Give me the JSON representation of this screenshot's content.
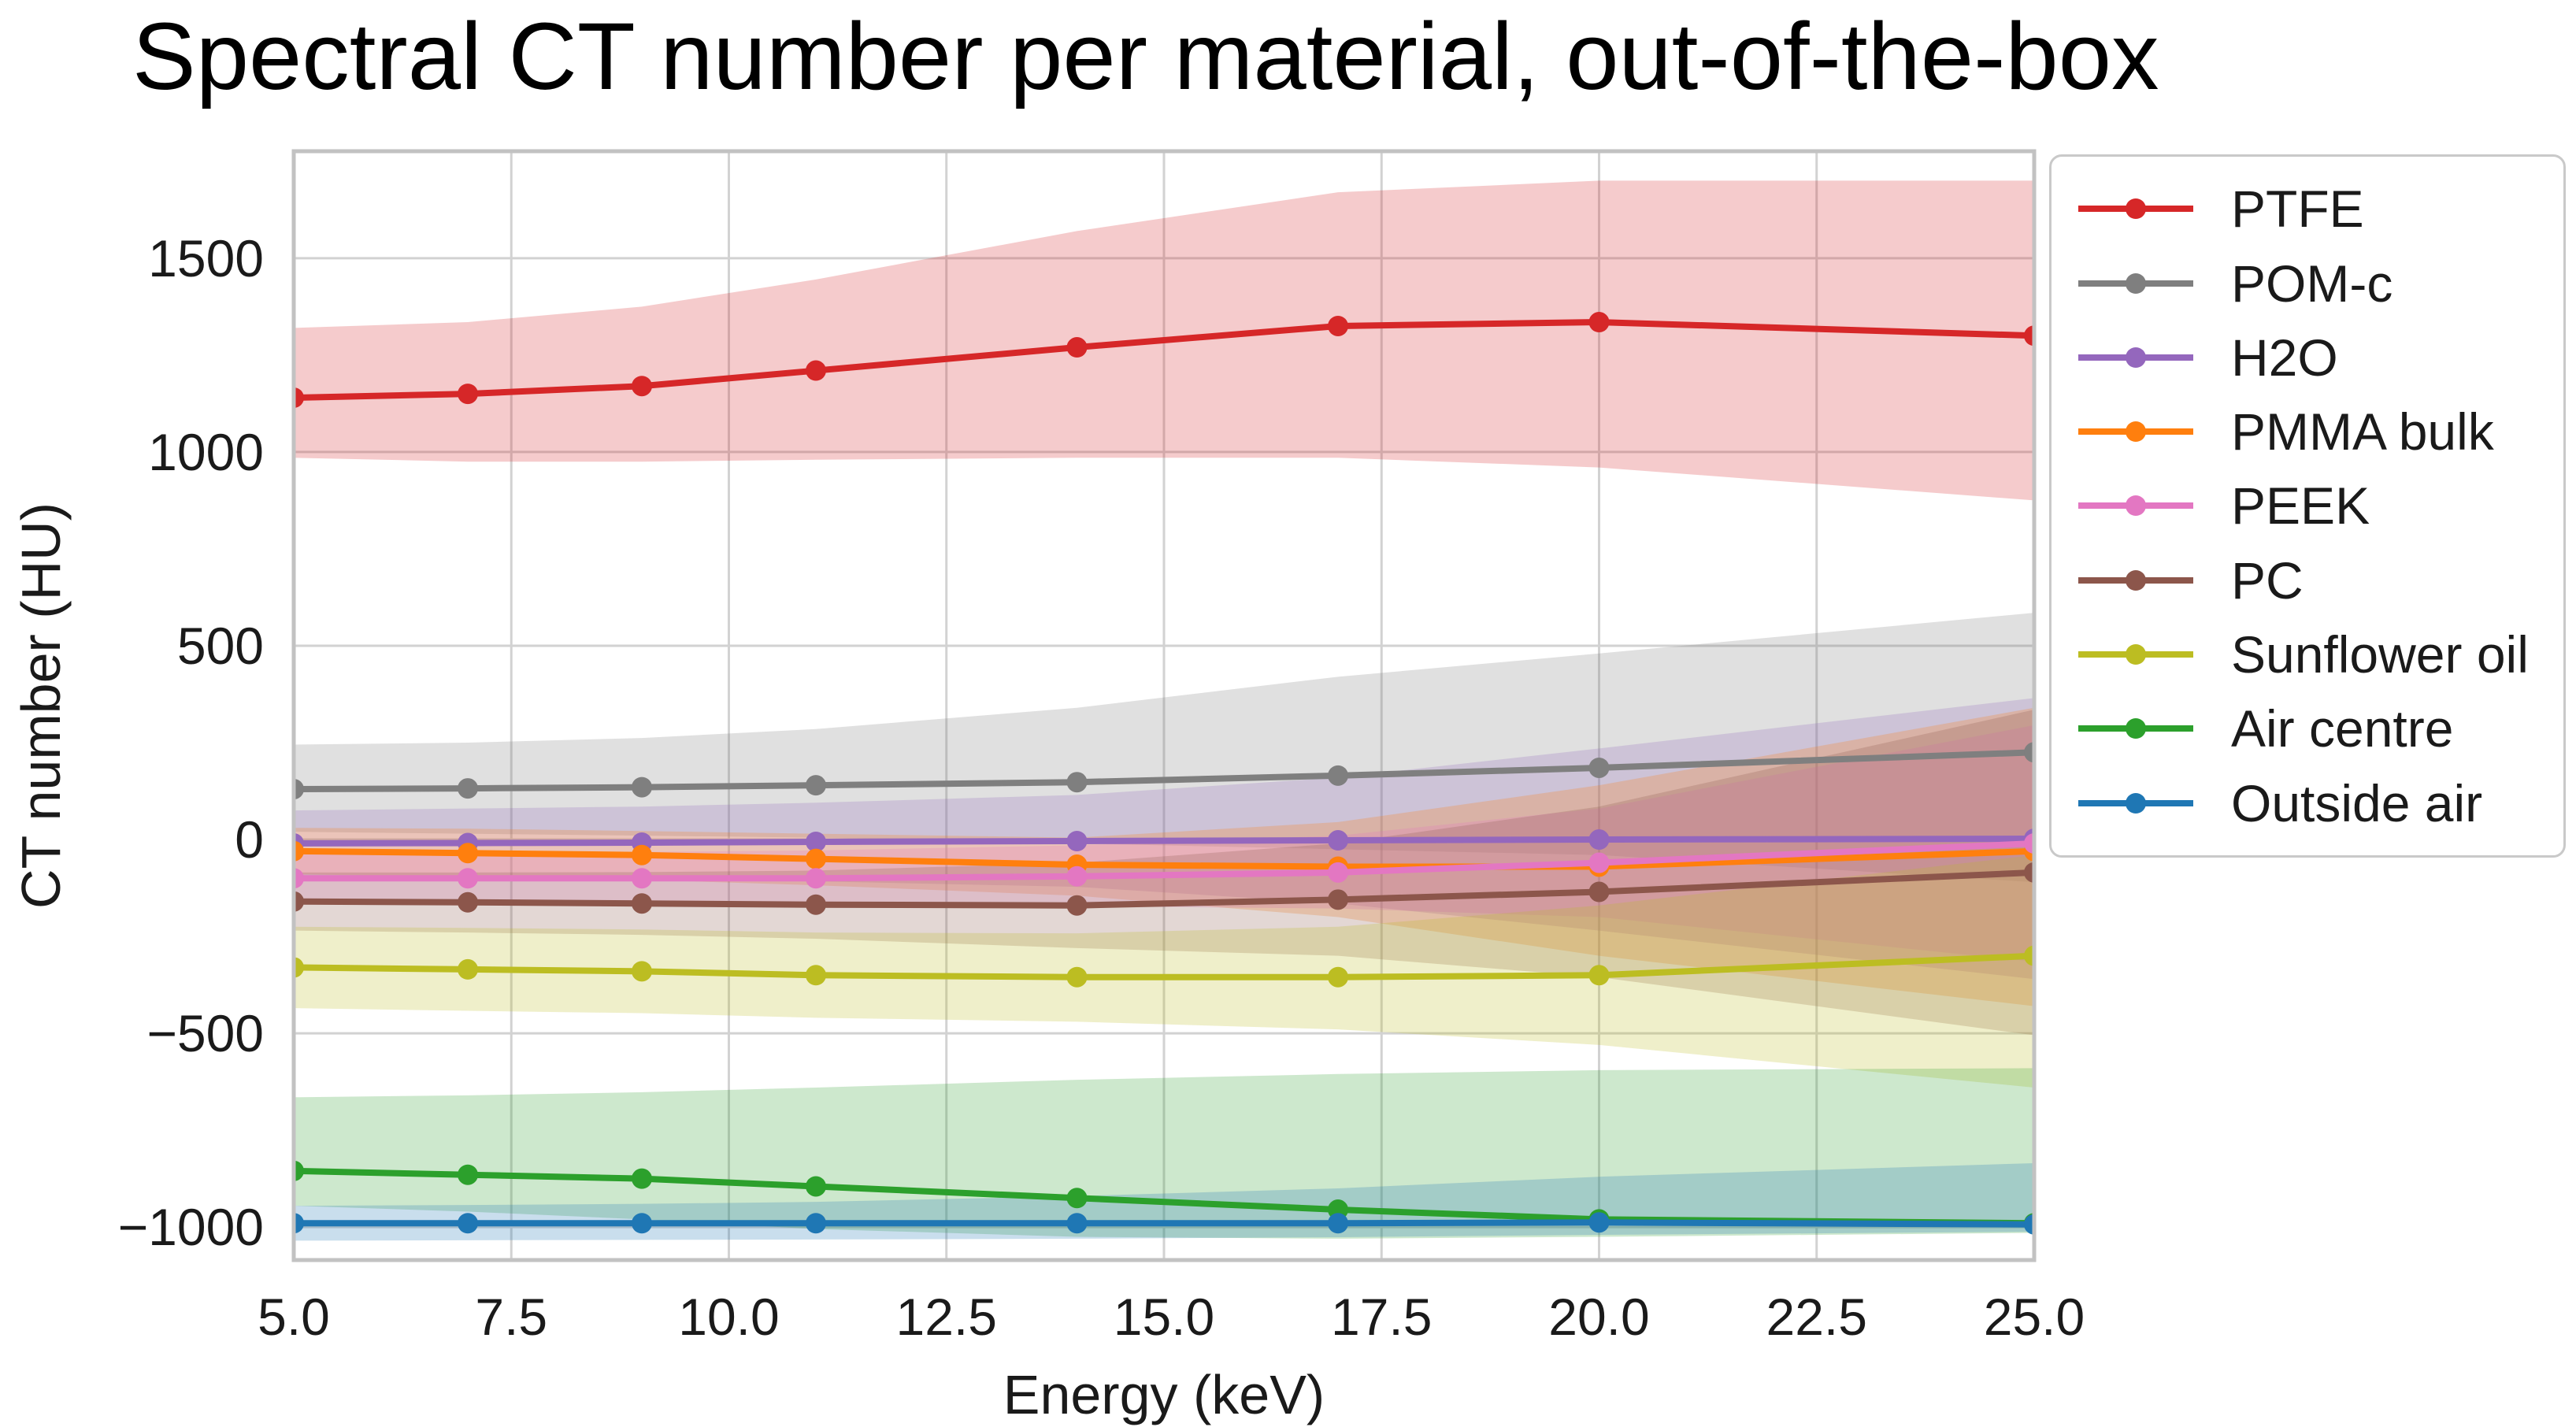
{
  "chart_data": {
    "type": "line",
    "title": "Spectral CT number per material, out-of-the-box",
    "xlabel": "Energy (keV)",
    "ylabel": "CT number (HU)",
    "x": [
      5,
      7,
      9,
      11,
      14,
      17,
      20,
      25
    ],
    "xlim": [
      5,
      25
    ],
    "ylim": [
      -1085,
      1776
    ],
    "grid": true,
    "legend_position": "outside-right",
    "band_opacity": 0.24,
    "x_ticks": {
      "values": [
        5,
        7.5,
        10,
        12.5,
        15,
        17.5,
        20,
        22.5,
        25
      ],
      "labels": [
        "5.0",
        "7.5",
        "10.0",
        "12.5",
        "15.0",
        "17.5",
        "20.0",
        "22.5",
        "25.0"
      ]
    },
    "y_ticks": {
      "values": [
        1500,
        1000,
        500,
        0,
        -500,
        -1000
      ],
      "labels": [
        "1500",
        "1000",
        "500",
        "0",
        "−500",
        "−1000"
      ]
    },
    "style": {
      "background": "#ffffff",
      "grid_color": "#d2d2d2",
      "spine_color": "#c2c2c2",
      "text_color": "#1a1a1a",
      "legend_border": "#c9c9c9"
    },
    "series": [
      {
        "name": "PTFE",
        "color": "#d62728",
        "values": [
          1140,
          1150,
          1170,
          1210,
          1270,
          1325,
          1335,
          1300
        ],
        "band_upper": [
          1320,
          1335,
          1375,
          1445,
          1570,
          1670,
          1700,
          1700
        ],
        "band_lower": [
          985,
          975,
          975,
          980,
          985,
          985,
          960,
          875
        ]
      },
      {
        "name": "POM-c",
        "color": "#7f7f7f",
        "values": [
          130,
          132,
          135,
          140,
          148,
          165,
          185,
          225
        ],
        "band_upper": [
          245,
          250,
          262,
          285,
          340,
          420,
          480,
          585
        ],
        "band_lower": [
          20,
          15,
          10,
          5,
          -10,
          -25,
          -40,
          -110
        ]
      },
      {
        "name": "H2O",
        "color": "#9467bd",
        "values": [
          -10,
          -9,
          -8,
          -6,
          -4,
          -2,
          0,
          2
        ],
        "band_upper": [
          75,
          80,
          85,
          95,
          115,
          160,
          235,
          365
        ],
        "band_lower": [
          -105,
          -105,
          -106,
          -108,
          -122,
          -165,
          -235,
          -360
        ]
      },
      {
        "name": "PMMA bulk",
        "color": "#ff7f0e",
        "values": [
          -30,
          -35,
          -40,
          -50,
          -65,
          -70,
          -70,
          -30
        ],
        "band_upper": [
          30,
          28,
          22,
          15,
          5,
          45,
          140,
          340
        ],
        "band_lower": [
          -90,
          -96,
          -104,
          -118,
          -145,
          -200,
          -300,
          -430
        ]
      },
      {
        "name": "PEEK",
        "color": "#e377c2",
        "values": [
          -100,
          -100,
          -100,
          -100,
          -95,
          -85,
          -60,
          -10
        ],
        "band_upper": [
          -35,
          -34,
          -32,
          -28,
          -15,
          10,
          80,
          295
        ],
        "band_lower": [
          -165,
          -168,
          -170,
          -173,
          -172,
          -178,
          -200,
          -315
        ]
      },
      {
        "name": "PC",
        "color": "#8c564b",
        "values": [
          -160,
          -162,
          -165,
          -168,
          -170,
          -155,
          -135,
          -85
        ],
        "band_upper": [
          -85,
          -85,
          -84,
          -80,
          -60,
          -10,
          85,
          335
        ],
        "band_lower": [
          -235,
          -240,
          -246,
          -256,
          -280,
          -300,
          -355,
          -505
        ]
      },
      {
        "name": "Sunflower oil",
        "color": "#bcbd22",
        "values": [
          -330,
          -335,
          -340,
          -350,
          -355,
          -355,
          -350,
          -300
        ],
        "band_upper": [
          -225,
          -228,
          -232,
          -240,
          -242,
          -225,
          -170,
          -40
        ],
        "band_lower": [
          -435,
          -442,
          -448,
          -460,
          -470,
          -490,
          -530,
          -640
        ]
      },
      {
        "name": "Air centre",
        "color": "#2ca02c",
        "values": [
          -855,
          -865,
          -875,
          -895,
          -925,
          -955,
          -980,
          -990
        ],
        "band_upper": [
          -665,
          -660,
          -652,
          -640,
          -620,
          -605,
          -595,
          -590
        ],
        "band_lower": [
          -945,
          -960,
          -980,
          -1005,
          -1025,
          -1030,
          -1025,
          -1015
        ]
      },
      {
        "name": "Outside air",
        "color": "#1f77b4",
        "values": [
          -990,
          -990,
          -990,
          -990,
          -990,
          -990,
          -988,
          -993
        ],
        "band_upper": [
          -945,
          -943,
          -940,
          -935,
          -920,
          -900,
          -870,
          -835
        ],
        "band_lower": [
          -1035,
          -1034,
          -1033,
          -1032,
          -1030,
          -1026,
          -1020,
          -1012
        ]
      }
    ]
  }
}
